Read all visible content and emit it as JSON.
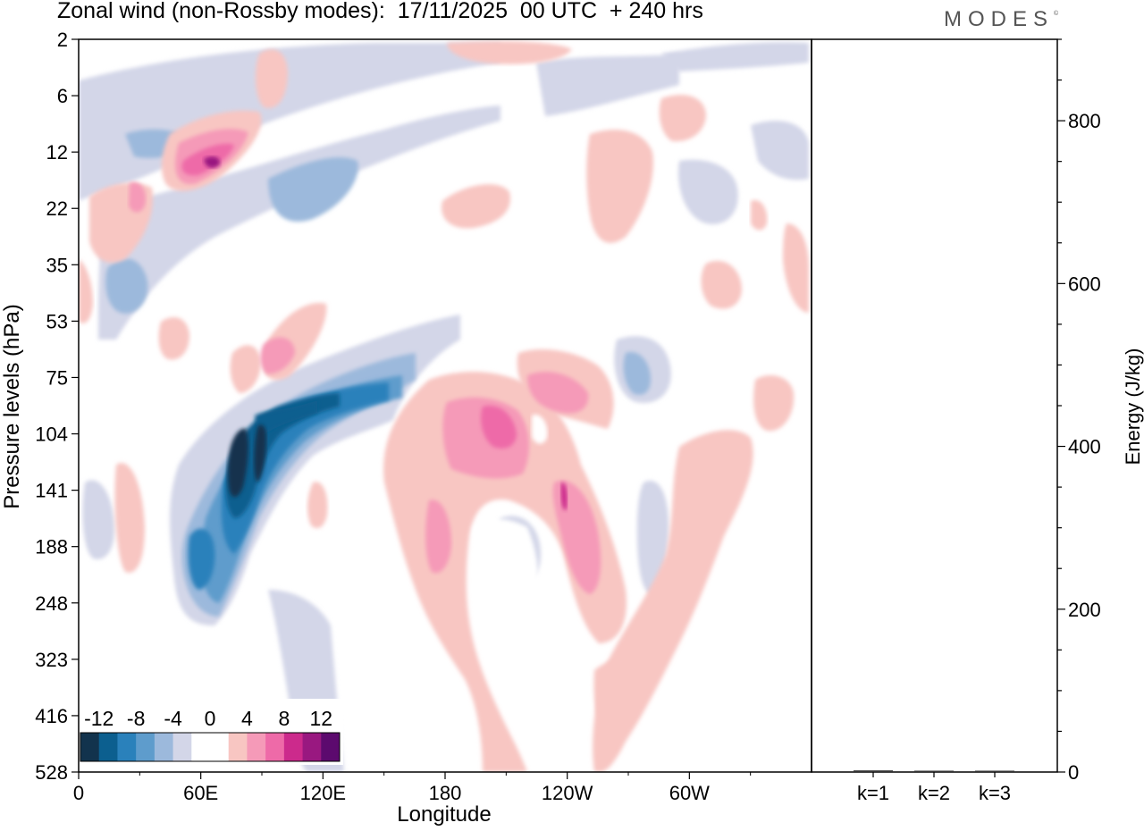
{
  "header": {
    "title": "Zonal wind (non-Rossby modes):  17/11/2025  00 UTC  + 240 hrs",
    "brand": "MODES",
    "brand_mark": "©"
  },
  "colors": {
    "negative": [
      "#12334d",
      "#0c5f8f",
      "#2a81bb",
      "#5e9ccc",
      "#9cb9dc",
      "#d3d6e8"
    ],
    "zero": "#ffffff",
    "positive": [
      "#f8c6c2",
      "#f59ab8",
      "#ee6aa8",
      "#cc2a8c",
      "#991880",
      "#5c0a6e"
    ]
  },
  "chart_data": [
    {
      "type": "heatmap",
      "title": "Zonal wind (non-Rossby modes)",
      "xlabel": "Longitude",
      "ylabel": "Pressure levels (hPa)",
      "x_ticks": [
        "0",
        "60E",
        "120E",
        "180",
        "120W",
        "60W"
      ],
      "x_tick_values": [
        0,
        60,
        120,
        180,
        240,
        300
      ],
      "xlim": [
        0,
        360
      ],
      "y_ticks": [
        "2",
        "6",
        "12",
        "22",
        "35",
        "53",
        "75",
        "104",
        "141",
        "188",
        "248",
        "323",
        "416",
        "528"
      ],
      "colorbar": {
        "labels": [
          "-12",
          "-8",
          "-4",
          "0",
          "4",
          "8",
          "12"
        ],
        "levels": [
          -12,
          -10,
          -8,
          -6,
          -4,
          -2,
          2,
          4,
          6,
          8,
          10,
          12
        ],
        "placement": "bottom-left"
      },
      "features": [
        {
          "name": "jet-negative-core",
          "lon": 80,
          "level": "141",
          "value": -13
        },
        {
          "name": "jet-negative-core-2",
          "lon": 90,
          "level": "141",
          "value": -12
        },
        {
          "name": "negative-band",
          "lon": 120,
          "level": "104",
          "value": -8
        },
        {
          "name": "negative-lower",
          "lon": 62,
          "level": "188",
          "value": -8
        },
        {
          "name": "positive-core",
          "lon": 207,
          "level": "104",
          "value": 6
        },
        {
          "name": "positive-upper",
          "lon": 65,
          "level": "12",
          "value": 10
        },
        {
          "name": "positive-west",
          "lon": 250,
          "level": "188",
          "value": 5
        }
      ]
    },
    {
      "type": "bar",
      "ylabel": "Energy (J/kg)",
      "categories": [
        "k=1",
        "k=2",
        "k=3"
      ],
      "values": [
        2,
        1,
        1
      ],
      "ylim": [
        0,
        900
      ],
      "y_ticks": [
        "0",
        "200",
        "400",
        "600",
        "800"
      ],
      "y_tick_values": [
        0,
        200,
        400,
        600,
        800
      ]
    }
  ]
}
